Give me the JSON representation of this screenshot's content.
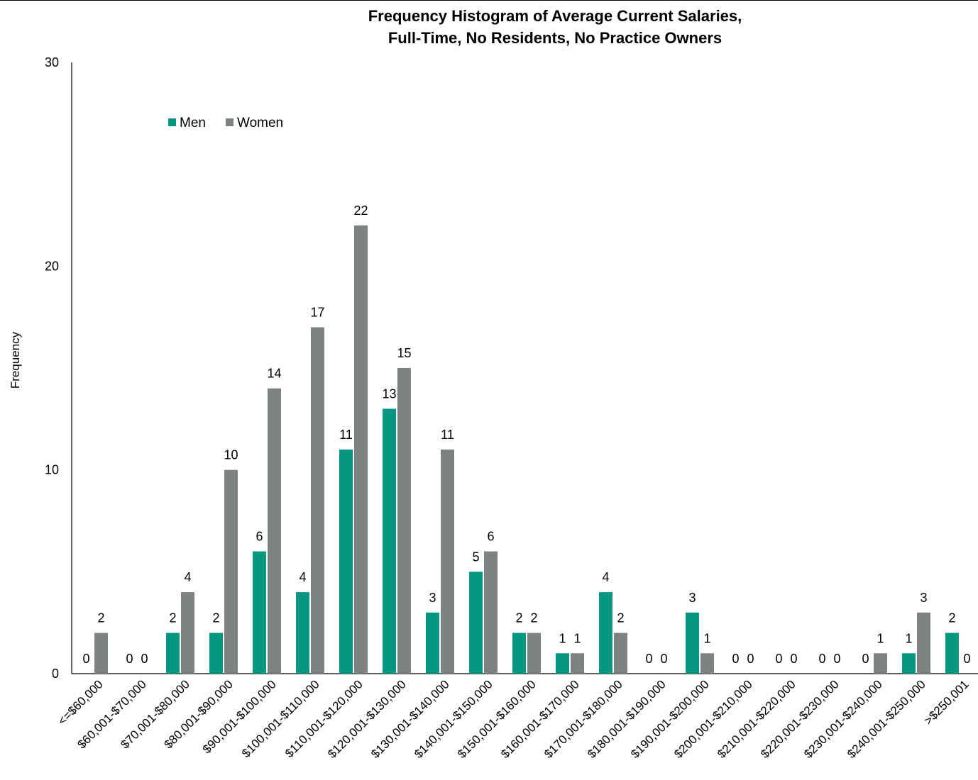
{
  "chart_data": {
    "type": "bar",
    "title": "Frequency Histogram of Average Current Salaries,",
    "subtitle": "Full-Time, No Residents, No Practice Owners",
    "ylabel": "Frequency",
    "xlabel": "",
    "ylim": [
      0,
      30
    ],
    "yticks": [
      0,
      10,
      20,
      30
    ],
    "legend_position": "top-left",
    "grid": false,
    "colors": {
      "Men": "#079780",
      "Women": "#7f8283"
    },
    "categories": [
      "<=$60,000",
      "$60,001-$70,000",
      "$70,001-$80,000",
      "$80,001-$90,000",
      "$90,001-$100,000",
      "$100,001-$110,000",
      "$110,001-$120,000",
      "$120,001-$130,000",
      "$130,001-$140,000",
      "$140,001-$150,000",
      "$150,001-$160,000",
      "$160,001-$170,000",
      "$170,001-$180,000",
      "$180,001-$190,000",
      "$190,001-$200,000",
      "$200,001-$210,000",
      "$210,001-$220,000",
      "$220,001-$230,000",
      "$230,001-$240,000",
      "$240,001-$250,000",
      ">$250,001"
    ],
    "series": [
      {
        "name": "Men",
        "values": [
          0,
          0,
          2,
          2,
          6,
          4,
          11,
          13,
          3,
          5,
          2,
          1,
          4,
          0,
          3,
          0,
          0,
          0,
          0,
          1,
          2
        ]
      },
      {
        "name": "Women",
        "values": [
          2,
          0,
          4,
          10,
          14,
          17,
          22,
          15,
          11,
          6,
          2,
          1,
          2,
          0,
          1,
          0,
          0,
          0,
          1,
          3,
          0
        ]
      }
    ]
  }
}
